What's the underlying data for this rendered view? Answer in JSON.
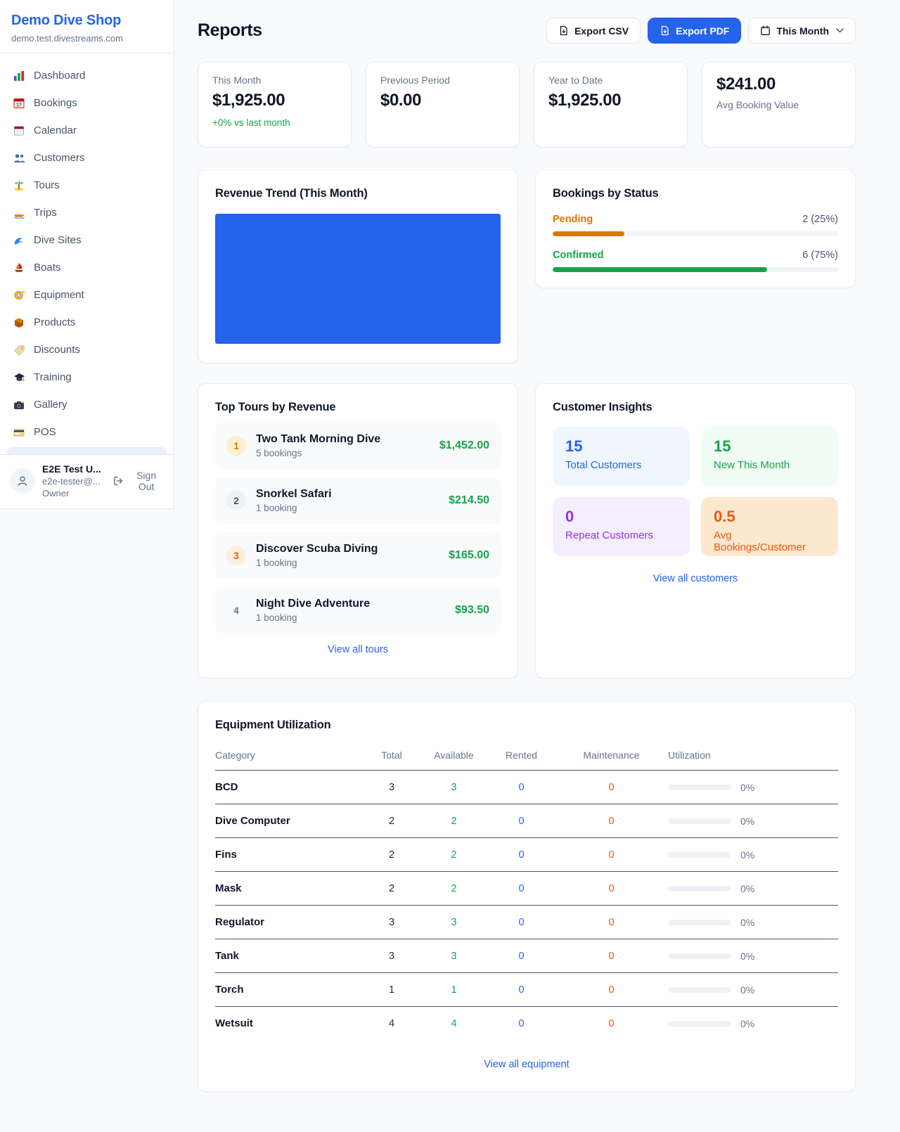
{
  "sidebar": {
    "brand": {
      "name": "Demo Dive Shop",
      "domain": "demo.test.divestreams.com"
    },
    "nav": [
      {
        "icon": "bar-chart",
        "label": "Dashboard"
      },
      {
        "icon": "calendar-date",
        "label": "Bookings"
      },
      {
        "icon": "tear-calendar",
        "label": "Calendar"
      },
      {
        "icon": "people",
        "label": "Customers"
      },
      {
        "icon": "island",
        "label": "Tours"
      },
      {
        "icon": "speedboat",
        "label": "Trips"
      },
      {
        "icon": "wave",
        "label": "Dive Sites"
      },
      {
        "icon": "sailboat",
        "label": "Boats"
      },
      {
        "icon": "diving-mask",
        "label": "Equipment"
      },
      {
        "icon": "package",
        "label": "Products"
      },
      {
        "icon": "tag",
        "label": "Discounts"
      },
      {
        "icon": "graduation-cap",
        "label": "Training"
      },
      {
        "icon": "camera",
        "label": "Gallery"
      },
      {
        "icon": "credit-card",
        "label": "POS"
      }
    ],
    "user": {
      "name": "E2E Test U...",
      "email": "e2e-tester@...",
      "role": "Owner",
      "sign_out": "Sign Out"
    }
  },
  "header": {
    "title": "Reports",
    "export_csv": "Export CSV",
    "export_pdf": "Export PDF",
    "period": "This Month"
  },
  "stats": [
    {
      "label": "This Month",
      "value": "$1,925.00",
      "delta": "+0% vs last month"
    },
    {
      "label": "Previous Period",
      "value": "$0.00"
    },
    {
      "label": "Year to Date",
      "value": "$1,925.00"
    },
    {
      "label": "Avg Booking Value",
      "value": "$241.00"
    }
  ],
  "revenue_trend": {
    "title": "Revenue Trend (This Month)",
    "bar_color": "#2563eb"
  },
  "bookings_by_status": {
    "title": "Bookings by Status",
    "rows": [
      {
        "label": "Pending",
        "count": "2 (25%)",
        "pct": 25,
        "color": "#d97706"
      },
      {
        "label": "Confirmed",
        "count": "6 (75%)",
        "pct": 75,
        "color": "#16a34a"
      }
    ]
  },
  "top_tours": {
    "title": "Top Tours by Revenue",
    "rows": [
      {
        "rank": "1",
        "name": "Two Tank Morning Dive",
        "bookings": "5 bookings",
        "revenue": "$1,452.00"
      },
      {
        "rank": "2",
        "name": "Snorkel Safari",
        "bookings": "1 booking",
        "revenue": "$214.50"
      },
      {
        "rank": "3",
        "name": "Discover Scuba Diving",
        "bookings": "1 booking",
        "revenue": "$165.00"
      },
      {
        "rank": "4",
        "name": "Night Dive Adventure",
        "bookings": "1 booking",
        "revenue": "$93.50"
      }
    ],
    "link": "View all tours"
  },
  "customer_insights": {
    "title": "Customer Insights",
    "tiles": [
      {
        "value": "15",
        "label": "Total Customers",
        "color": "#2563eb"
      },
      {
        "value": "15",
        "label": "New This Month",
        "color": "#16a34a"
      },
      {
        "value": "0",
        "label": "Repeat Customers",
        "color": "#9333ea"
      },
      {
        "value": "0.5",
        "label": "Avg Bookings/Customer",
        "color": "#ea580c"
      }
    ],
    "link": "View all customers"
  },
  "equipment": {
    "title": "Equipment Utilization",
    "columns": [
      "Category",
      "Total",
      "Available",
      "Rented",
      "Maintenance",
      "Utilization"
    ],
    "rows": [
      {
        "category": "BCD",
        "total": "3",
        "available": "3",
        "rented": "0",
        "maintenance": "0",
        "utilization_pct": 0,
        "utilization": "0%"
      },
      {
        "category": "Dive Computer",
        "total": "2",
        "available": "2",
        "rented": "0",
        "maintenance": "0",
        "utilization_pct": 0,
        "utilization": "0%"
      },
      {
        "category": "Fins",
        "total": "2",
        "available": "2",
        "rented": "0",
        "maintenance": "0",
        "utilization_pct": 0,
        "utilization": "0%"
      },
      {
        "category": "Mask",
        "total": "2",
        "available": "2",
        "rented": "0",
        "maintenance": "0",
        "utilization_pct": 0,
        "utilization": "0%"
      },
      {
        "category": "Regulator",
        "total": "3",
        "available": "3",
        "rented": "0",
        "maintenance": "0",
        "utilization_pct": 0,
        "utilization": "0%"
      },
      {
        "category": "Tank",
        "total": "3",
        "available": "3",
        "rented": "0",
        "maintenance": "0",
        "utilization_pct": 0,
        "utilization": "0%"
      },
      {
        "category": "Torch",
        "total": "1",
        "available": "1",
        "rented": "0",
        "maintenance": "0",
        "utilization_pct": 0,
        "utilization": "0%"
      },
      {
        "category": "Wetsuit",
        "total": "4",
        "available": "4",
        "rented": "0",
        "maintenance": "0",
        "utilization_pct": 0,
        "utilization": "0%"
      }
    ],
    "link": "View all equipment"
  },
  "colors": {
    "accent_blue": "#2563eb",
    "green": "#16a34a",
    "amber": "#d97706",
    "orange": "#ea580c",
    "purple": "#9333ea",
    "page_bg": "#f8fafc"
  }
}
